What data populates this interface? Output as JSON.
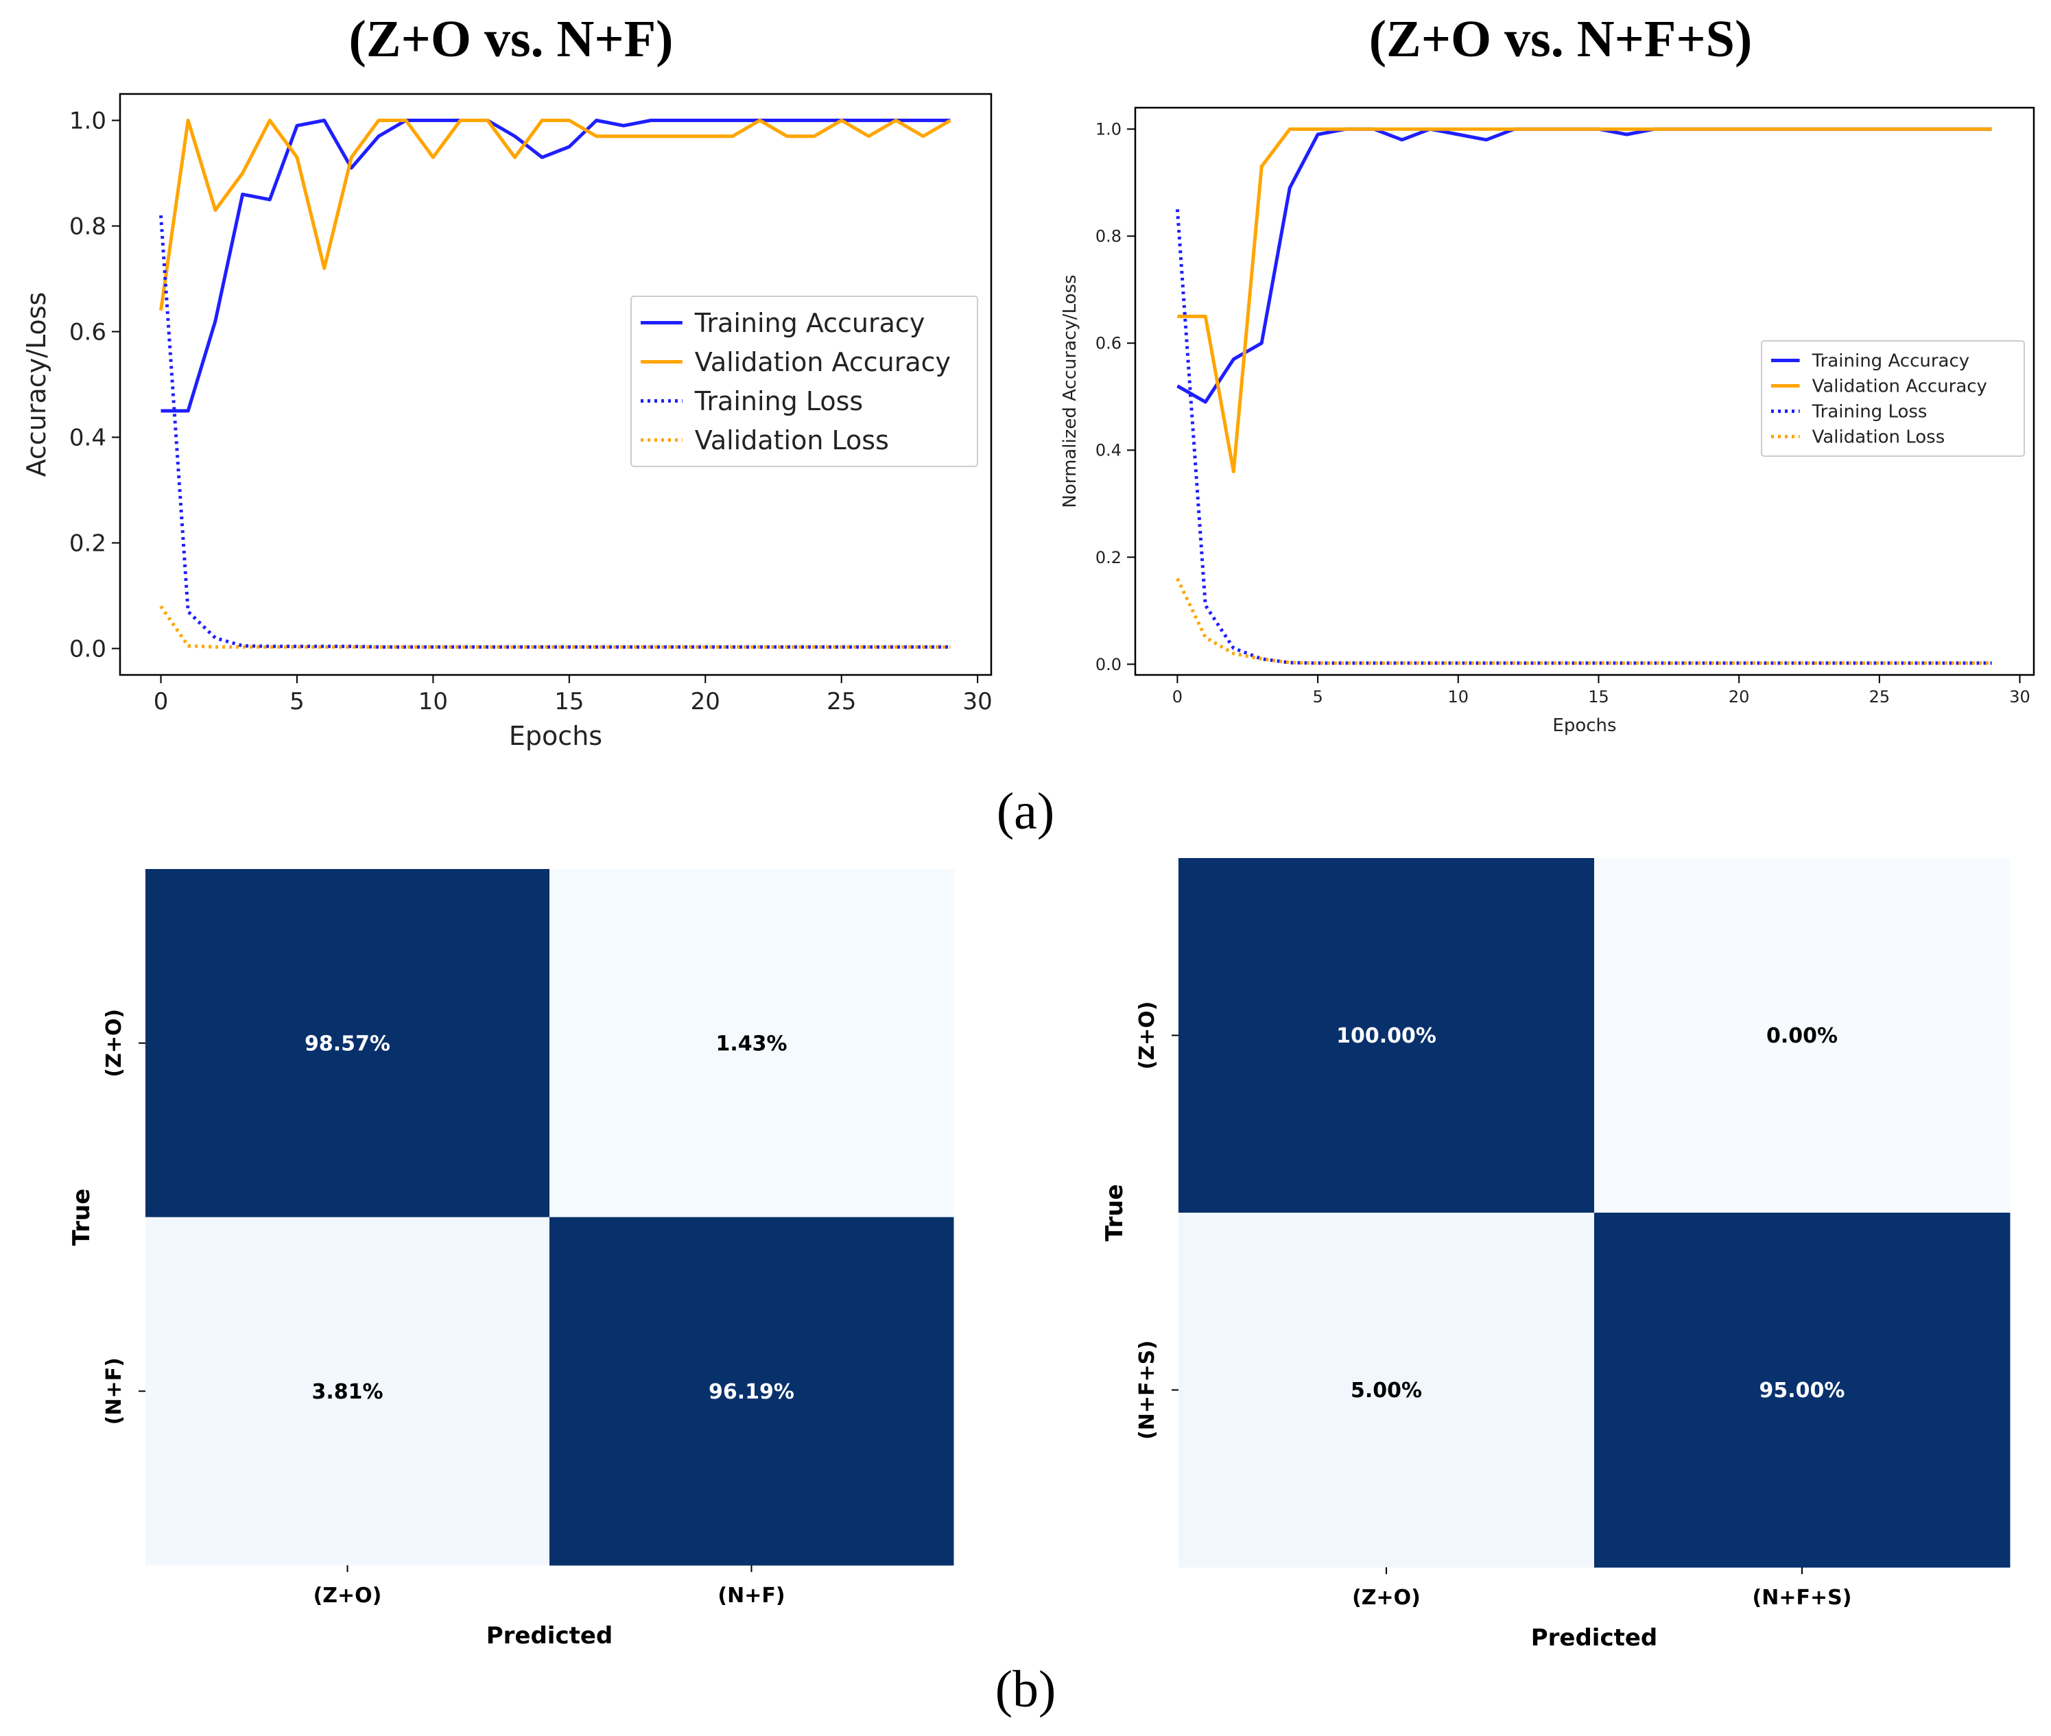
{
  "titles": {
    "left": "(Z+O vs. N+F)",
    "right": "(Z+O vs. N+F+S)"
  },
  "panel_labels": {
    "a": "(a)",
    "b": "(b)"
  },
  "colors": {
    "training": "#1f1fff",
    "validation": "#ffa500",
    "cm_dark": "#08306b",
    "cm_light": "#f7fbff"
  },
  "chart_data": [
    {
      "type": "line",
      "id": "left-curves",
      "xlabel": "Epochs",
      "ylabel": "Accuracy/Loss",
      "xlim": [
        -1.5,
        30.5
      ],
      "ylim": [
        -0.05,
        1.05
      ],
      "xticks": [
        0,
        5,
        10,
        15,
        20,
        25,
        30
      ],
      "yticks": [
        0.0,
        0.2,
        0.4,
        0.6,
        0.8,
        1.0
      ],
      "legend_position": "center-right",
      "x": [
        0,
        1,
        2,
        3,
        4,
        5,
        6,
        7,
        8,
        9,
        10,
        11,
        12,
        13,
        14,
        15,
        16,
        17,
        18,
        19,
        20,
        21,
        22,
        23,
        24,
        25,
        26,
        27,
        28,
        29
      ],
      "series": [
        {
          "name": "Training Accuracy",
          "style": "solid",
          "color": "#1f1fff",
          "values": [
            0.45,
            0.45,
            0.62,
            0.86,
            0.85,
            0.99,
            1.0,
            0.91,
            0.97,
            1.0,
            1.0,
            1.0,
            1.0,
            0.97,
            0.93,
            0.95,
            1.0,
            0.99,
            1.0,
            1.0,
            1.0,
            1.0,
            1.0,
            1.0,
            1.0,
            1.0,
            1.0,
            1.0,
            1.0,
            1.0
          ]
        },
        {
          "name": "Validation Accuracy",
          "style": "solid",
          "color": "#ffa500",
          "values": [
            0.64,
            1.0,
            0.83,
            0.9,
            1.0,
            0.93,
            0.72,
            0.93,
            1.0,
            1.0,
            0.93,
            1.0,
            1.0,
            0.93,
            1.0,
            1.0,
            0.97,
            0.97,
            0.97,
            0.97,
            0.97,
            0.97,
            1.0,
            0.97,
            0.97,
            1.0,
            0.97,
            1.0,
            0.97,
            1.0
          ]
        },
        {
          "name": "Training Loss",
          "style": "dotted",
          "color": "#1f1fff",
          "values": [
            0.82,
            0.07,
            0.02,
            0.005,
            0.004,
            0.004,
            0.004,
            0.004,
            0.003,
            0.003,
            0.003,
            0.003,
            0.003,
            0.003,
            0.003,
            0.003,
            0.003,
            0.003,
            0.003,
            0.003,
            0.003,
            0.003,
            0.003,
            0.003,
            0.003,
            0.003,
            0.003,
            0.003,
            0.003,
            0.003
          ]
        },
        {
          "name": "Validation Loss",
          "style": "dotted",
          "color": "#ffa500",
          "values": [
            0.08,
            0.005,
            0.003,
            0.003,
            0.003,
            0.003,
            0.003,
            0.003,
            0.003,
            0.003,
            0.003,
            0.003,
            0.003,
            0.003,
            0.003,
            0.003,
            0.003,
            0.003,
            0.003,
            0.003,
            0.003,
            0.003,
            0.003,
            0.003,
            0.003,
            0.003,
            0.003,
            0.003,
            0.003,
            0.003
          ]
        }
      ]
    },
    {
      "type": "line",
      "id": "right-curves",
      "xlabel": "Epochs",
      "ylabel": "Normalized Accuracy/Loss",
      "xlim": [
        -1.5,
        30.5
      ],
      "ylim": [
        -0.02,
        1.04
      ],
      "xticks": [
        0,
        5,
        10,
        15,
        20,
        25,
        30
      ],
      "yticks": [
        0.0,
        0.2,
        0.4,
        0.6,
        0.8,
        1.0
      ],
      "legend_position": "center-right",
      "x": [
        0,
        1,
        2,
        3,
        4,
        5,
        6,
        7,
        8,
        9,
        10,
        11,
        12,
        13,
        14,
        15,
        16,
        17,
        18,
        19,
        20,
        21,
        22,
        23,
        24,
        25,
        26,
        27,
        28,
        29
      ],
      "series": [
        {
          "name": "Training Accuracy",
          "style": "solid",
          "color": "#1f1fff",
          "values": [
            0.52,
            0.49,
            0.57,
            0.6,
            0.89,
            0.99,
            1.0,
            1.0,
            0.98,
            1.0,
            0.99,
            0.98,
            1.0,
            1.0,
            1.0,
            1.0,
            0.99,
            1.0,
            1.0,
            1.0,
            1.0,
            1.0,
            1.0,
            1.0,
            1.0,
            1.0,
            1.0,
            1.0,
            1.0,
            1.0
          ]
        },
        {
          "name": "Validation Accuracy",
          "style": "solid",
          "color": "#ffa500",
          "values": [
            0.65,
            0.65,
            0.36,
            0.93,
            1.0,
            1.0,
            1.0,
            1.0,
            1.0,
            1.0,
            1.0,
            1.0,
            1.0,
            1.0,
            1.0,
            1.0,
            1.0,
            1.0,
            1.0,
            1.0,
            1.0,
            1.0,
            1.0,
            1.0,
            1.0,
            1.0,
            1.0,
            1.0,
            1.0,
            1.0
          ]
        },
        {
          "name": "Training Loss",
          "style": "dotted",
          "color": "#1f1fff",
          "values": [
            0.85,
            0.11,
            0.03,
            0.01,
            0.003,
            0.002,
            0.002,
            0.002,
            0.002,
            0.002,
            0.002,
            0.002,
            0.002,
            0.002,
            0.002,
            0.002,
            0.002,
            0.002,
            0.002,
            0.002,
            0.002,
            0.002,
            0.002,
            0.002,
            0.002,
            0.002,
            0.002,
            0.002,
            0.002,
            0.002
          ]
        },
        {
          "name": "Validation Loss",
          "style": "dotted",
          "color": "#ffa500",
          "values": [
            0.16,
            0.05,
            0.02,
            0.01,
            0.003,
            0.002,
            0.002,
            0.002,
            0.002,
            0.002,
            0.002,
            0.002,
            0.002,
            0.002,
            0.002,
            0.002,
            0.002,
            0.002,
            0.002,
            0.002,
            0.002,
            0.002,
            0.002,
            0.002,
            0.002,
            0.002,
            0.002,
            0.002,
            0.002,
            0.002
          ]
        }
      ]
    },
    {
      "type": "heatmap",
      "id": "left-cm",
      "xlabel": "Predicted",
      "ylabel": "True",
      "xcategories": [
        "(Z+O)",
        "(N+F)"
      ],
      "ycategories": [
        "(Z+O)",
        "(N+F)"
      ],
      "values": [
        [
          98.57,
          1.43
        ],
        [
          3.81,
          96.19
        ]
      ],
      "labels": [
        [
          "98.57%",
          "1.43%"
        ],
        [
          "3.81%",
          "96.19%"
        ]
      ]
    },
    {
      "type": "heatmap",
      "id": "right-cm",
      "xlabel": "Predicted",
      "ylabel": "True",
      "xcategories": [
        "(Z+O)",
        "(N+F+S)"
      ],
      "ycategories": [
        "(Z+O)",
        "(N+F+S)"
      ],
      "values": [
        [
          100.0,
          0.0
        ],
        [
          5.0,
          95.0
        ]
      ],
      "labels": [
        [
          "100.00%",
          "0.00%"
        ],
        [
          "5.00%",
          "95.00%"
        ]
      ]
    }
  ]
}
